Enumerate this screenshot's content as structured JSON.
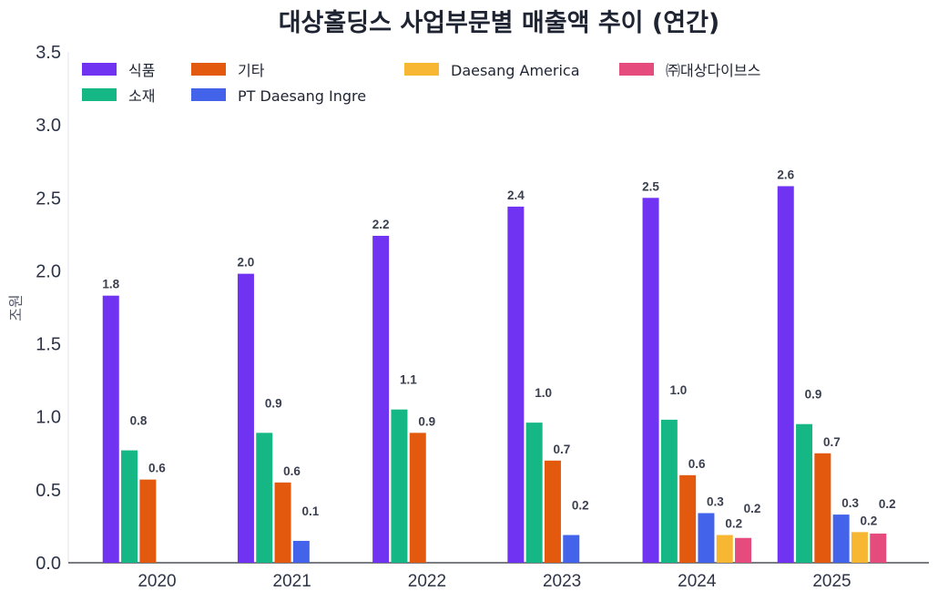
{
  "chart_data": {
    "type": "bar",
    "title": "대상홀딩스 사업부문별 매출액 추이 (연간)",
    "ylabel": "조원",
    "xlabel": "",
    "ylim": [
      0,
      3.5
    ],
    "yticks": [
      "0.0",
      "0.5",
      "1.0",
      "1.5",
      "2.0",
      "2.5",
      "3.0",
      "3.5"
    ],
    "categories": [
      "2020",
      "2021",
      "2022",
      "2023",
      "2024",
      "2025"
    ],
    "legend_position": "top-left",
    "grid": false,
    "series": [
      {
        "name": "식품",
        "color": "#7133f2",
        "values": [
          1.83,
          1.98,
          2.24,
          2.44,
          2.5,
          2.58
        ],
        "labels": [
          "1.8",
          "2.0",
          "2.2",
          "2.4",
          "2.5",
          "2.6"
        ]
      },
      {
        "name": "소재",
        "color": "#15b884",
        "values": [
          0.77,
          0.89,
          1.05,
          0.96,
          0.98,
          0.95
        ],
        "labels": [
          "0.8",
          "0.9",
          "1.1",
          "1.0",
          "1.0",
          "0.9"
        ]
      },
      {
        "name": "기타",
        "color": "#e35a0e",
        "values": [
          0.57,
          0.55,
          0.89,
          0.7,
          0.6,
          0.75
        ],
        "labels": [
          "0.6",
          "0.6",
          "0.9",
          "0.7",
          "0.6",
          "0.7"
        ]
      },
      {
        "name": "PT Daesang Ingre",
        "color": "#4363eb",
        "values": [
          null,
          0.15,
          null,
          0.19,
          0.34,
          0.33
        ],
        "labels": [
          null,
          "0.1",
          null,
          "0.2",
          "0.3",
          "0.3"
        ]
      },
      {
        "name": "Daesang America",
        "color": "#f7b733",
        "values": [
          null,
          null,
          null,
          null,
          0.19,
          0.21
        ],
        "labels": [
          null,
          null,
          null,
          null,
          "0.2",
          "0.2"
        ]
      },
      {
        "name": "㈜대상다이브스",
        "color": "#e54b7d",
        "values": [
          null,
          null,
          null,
          null,
          0.17,
          0.2
        ],
        "labels": [
          null,
          null,
          null,
          null,
          "0.2",
          "0.2"
        ]
      }
    ]
  }
}
